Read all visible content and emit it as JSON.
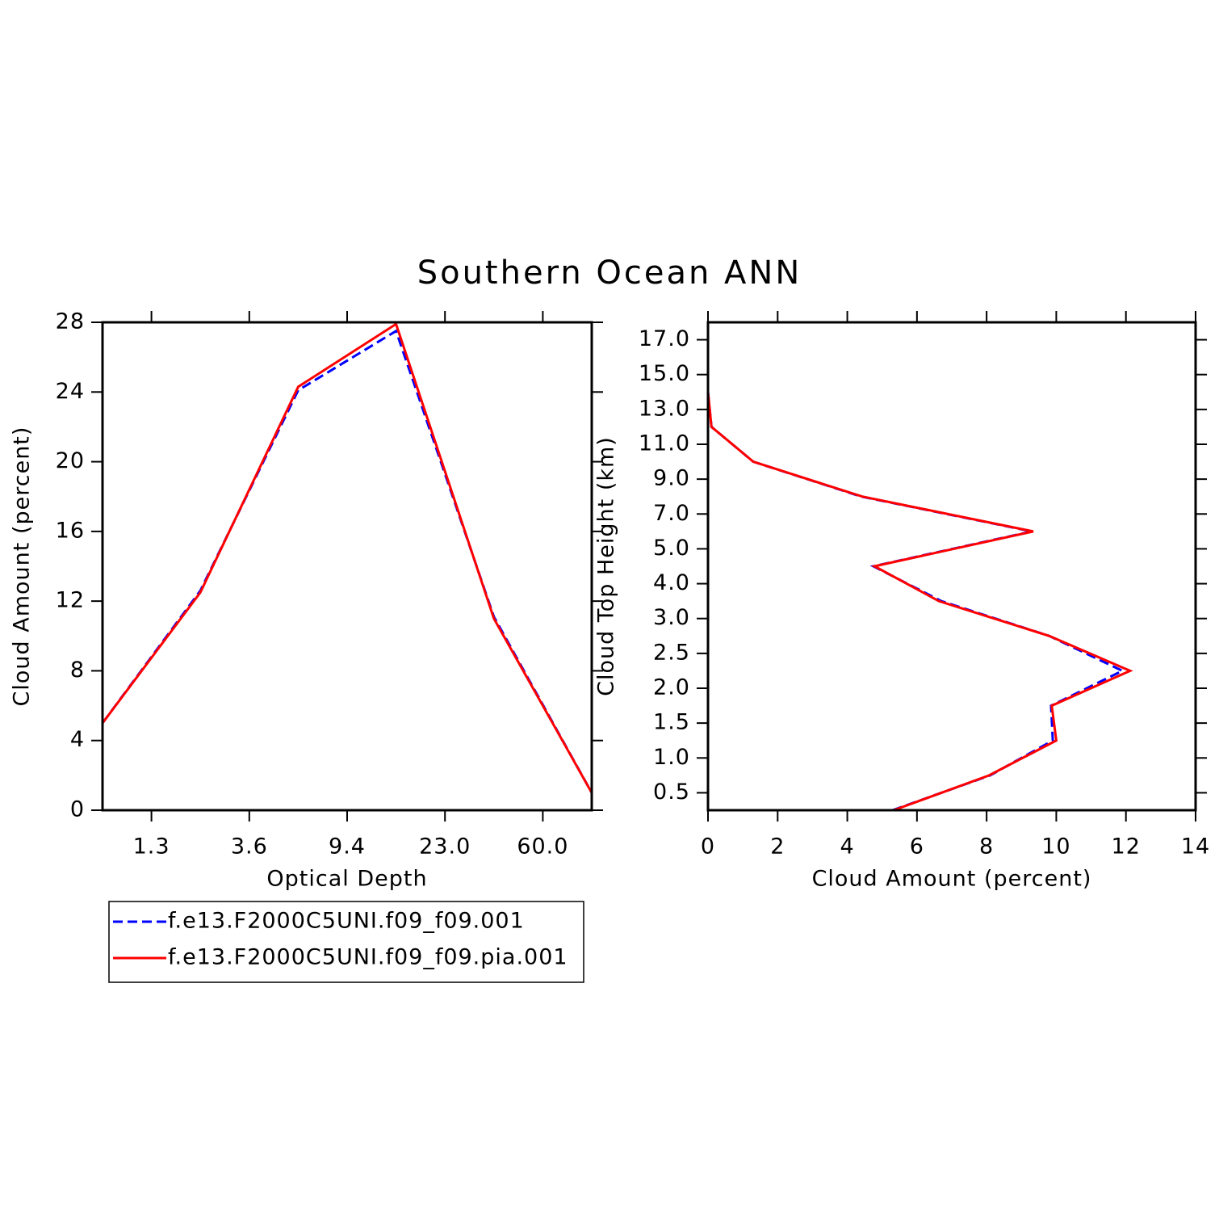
{
  "title": "Southern Ocean ANN",
  "chart_data": [
    {
      "type": "line",
      "xlabel": "Optical Depth",
      "ylabel": "Cloud Amount (percent)",
      "x": [
        0,
        1,
        2,
        3,
        4,
        5
      ],
      "xlim": [
        0,
        5
      ],
      "xticks": [
        {
          "value": 0.5,
          "label": "1.3"
        },
        {
          "value": 1.5,
          "label": "3.6"
        },
        {
          "value": 2.5,
          "label": "9.4"
        },
        {
          "value": 3.5,
          "label": "23.0"
        },
        {
          "value": 4.5,
          "label": "60.0"
        }
      ],
      "ylim": [
        0,
        28
      ],
      "yticks": [
        0,
        4,
        8,
        12,
        16,
        20,
        24,
        28
      ],
      "series": [
        {
          "name": "f.e13.F2000C5UNI.f09_f09.001",
          "color": "#0000ff",
          "dash": "dashed",
          "values": [
            5.0,
            12.6,
            24.1,
            27.5,
            11.1,
            1.0
          ]
        },
        {
          "name": "f.e13.F2000C5UNI.f09_f09.pia.001",
          "color": "#ff0000",
          "dash": "solid",
          "values": [
            5.0,
            12.5,
            24.3,
            27.9,
            11.0,
            1.0
          ]
        }
      ]
    },
    {
      "type": "line",
      "orientation": "horizontal",
      "xlabel": "Cloud Amount (percent)",
      "ylabel": "Cloud Top Height (km)",
      "y": [
        0,
        1,
        2,
        3,
        4,
        5,
        6,
        7,
        8,
        9,
        10,
        11,
        12,
        13
      ],
      "ylim": [
        0,
        14
      ],
      "yticks": [
        {
          "value": 0.5,
          "label": "0.5"
        },
        {
          "value": 1.5,
          "label": "1.0"
        },
        {
          "value": 2.5,
          "label": "1.5"
        },
        {
          "value": 3.5,
          "label": "2.0"
        },
        {
          "value": 4.5,
          "label": "2.5"
        },
        {
          "value": 5.5,
          "label": "3.0"
        },
        {
          "value": 6.5,
          "label": "4.0"
        },
        {
          "value": 7.5,
          "label": "5.0"
        },
        {
          "value": 8.5,
          "label": "7.0"
        },
        {
          "value": 9.5,
          "label": "9.0"
        },
        {
          "value": 10.5,
          "label": "11.0"
        },
        {
          "value": 11.5,
          "label": "13.0"
        },
        {
          "value": 12.5,
          "label": "15.0"
        },
        {
          "value": 13.5,
          "label": "17.0"
        }
      ],
      "xlim": [
        0,
        14
      ],
      "xticks": [
        0,
        2,
        4,
        6,
        8,
        10,
        12,
        14
      ],
      "series": [
        {
          "color": "#0000ff",
          "dash": "dashed",
          "values": [
            5.3,
            8.1,
            9.9,
            9.85,
            11.9,
            9.8,
            6.7,
            4.75,
            9.3,
            4.4,
            1.3,
            0.1,
            0.0,
            0.0
          ]
        },
        {
          "color": "#ff0000",
          "dash": "solid",
          "values": [
            5.33,
            8.07,
            10.0,
            9.87,
            12.12,
            9.8,
            6.63,
            4.78,
            9.34,
            4.43,
            1.3,
            0.1,
            0.0,
            0.0
          ]
        }
      ]
    }
  ]
}
